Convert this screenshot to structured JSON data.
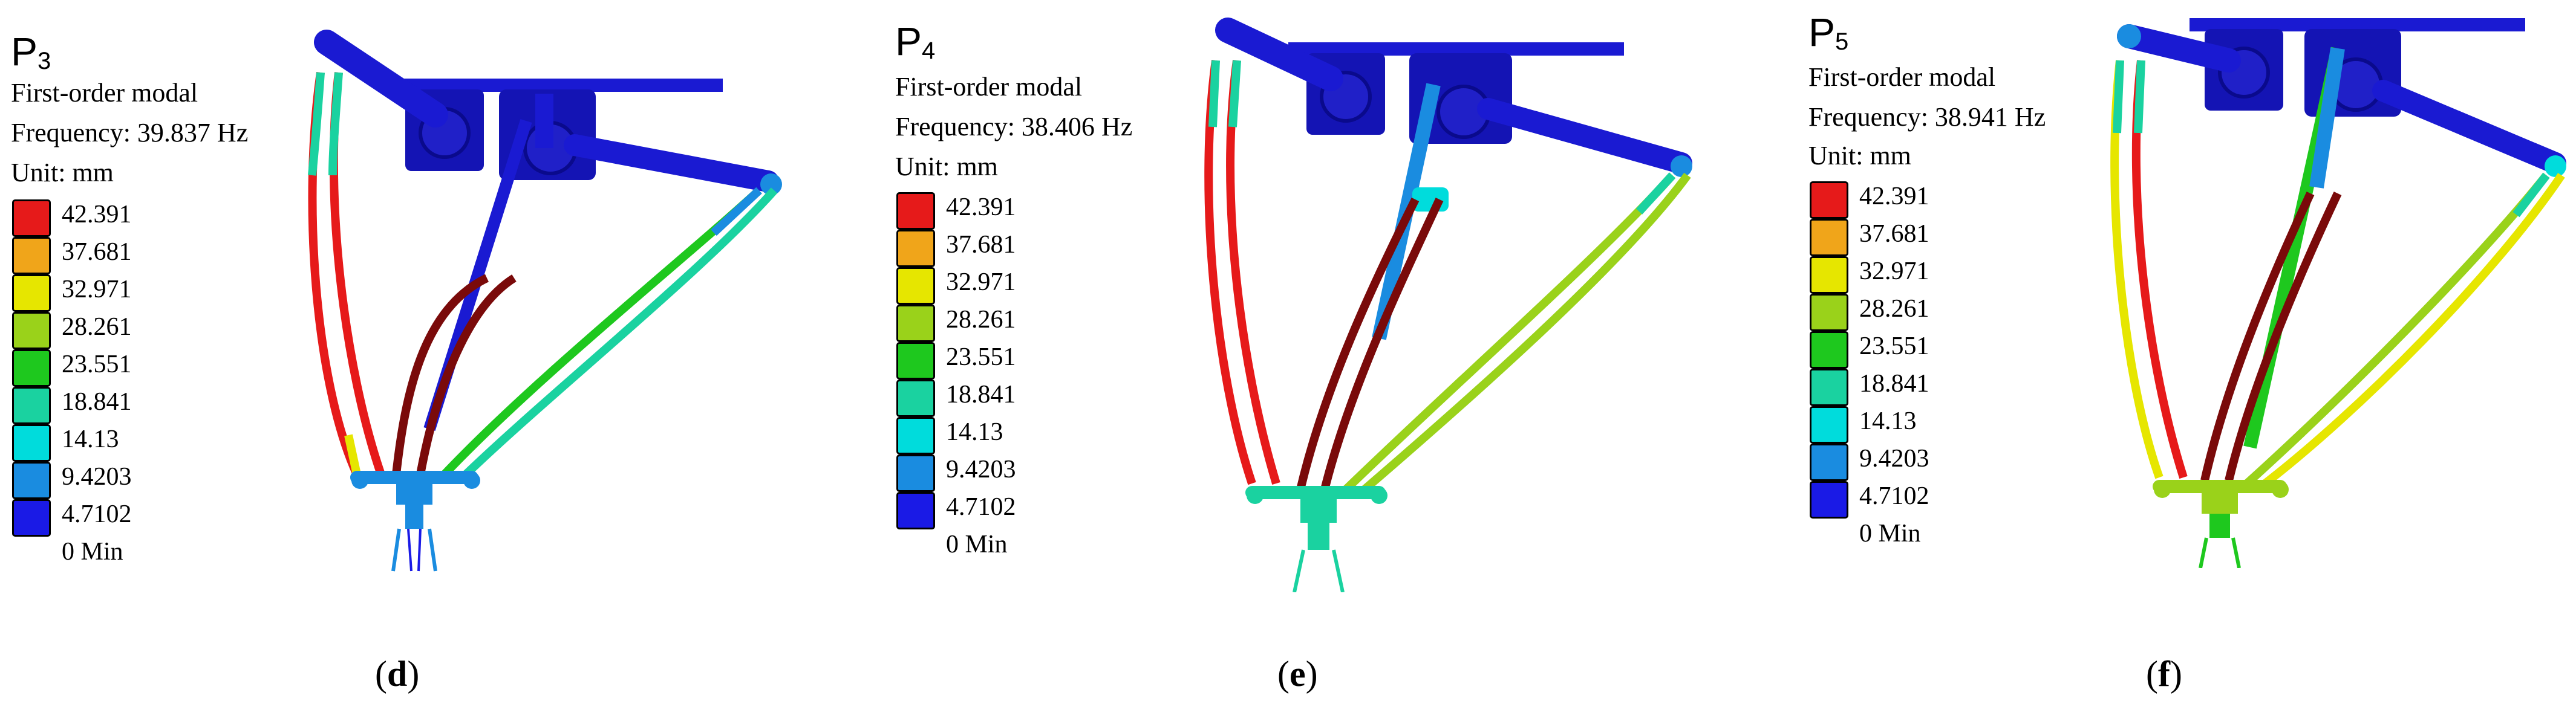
{
  "colors": {
    "scale": [
      "#1a1ae6",
      "#1a8ce0",
      "#00dcdc",
      "#1ad2a0",
      "#1ec81e",
      "#9ad21a",
      "#e6e600",
      "#f0a51a",
      "#e61a1a"
    ],
    "frame": "#1a1ad2",
    "dark_red": "#7a0a0a"
  },
  "panels": [
    {
      "title_base": "P",
      "title_sub": "3",
      "mode": "First-order modal",
      "frequency": "Frequency: 39.837 Hz",
      "unit": "Unit: mm",
      "legend": [
        "42.391",
        "37.681",
        "32.971",
        "28.261",
        "23.551",
        "18.841",
        "14.13",
        "9.4203",
        "4.7102",
        "0 Min"
      ],
      "caption_open": "(",
      "caption_letter": "d",
      "caption_close": ")"
    },
    {
      "title_base": "P",
      "title_sub": "4",
      "mode": "First-order modal",
      "frequency": "Frequency: 38.406 Hz",
      "unit": "Unit: mm",
      "legend": [
        "42.391",
        "37.681",
        "32.971",
        "28.261",
        "23.551",
        "18.841",
        "14.13",
        "9.4203",
        "4.7102",
        "0 Min"
      ],
      "caption_open": "(",
      "caption_letter": "e",
      "caption_close": ")"
    },
    {
      "title_base": "P",
      "title_sub": "5",
      "mode": "First-order modal",
      "frequency": "Frequency: 38.941 Hz",
      "unit": "Unit: mm",
      "legend": [
        "42.391",
        "37.681",
        "32.971",
        "28.261",
        "23.551",
        "18.841",
        "14.13",
        "9.4203",
        "4.7102",
        "0 Min"
      ],
      "caption_open": "(",
      "caption_letter": "f",
      "caption_close": ")"
    }
  ]
}
